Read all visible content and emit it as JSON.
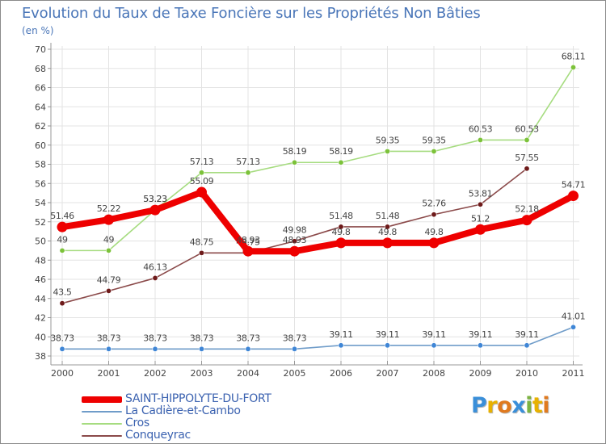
{
  "title": "Evolution du Taux de Taxe Foncière sur les Propriétés Non Bâties",
  "subtitle": "(en %)",
  "colors": {
    "title": "#4a76b8",
    "axis": "#999999",
    "grid": "#e3e3e3",
    "label": "#444444",
    "legend_text": "#3b62b0"
  },
  "logo": {
    "text": "Proxiti",
    "letters": [
      "P",
      "r",
      "o",
      "x",
      "i",
      "t",
      "i"
    ],
    "letter_colors": [
      "#3a8fd9",
      "#e8b100",
      "#e07a1f",
      "#3a8fd9",
      "#7cb342",
      "#e8b100",
      "#e07a1f"
    ]
  },
  "chart_data": {
    "type": "line",
    "title": "Evolution du Taux de Taxe Foncière sur les Propriétés Non Bâties",
    "ylabel": "(en %)",
    "xlabel": "",
    "categories": [
      "2000",
      "2001",
      "2002",
      "2003",
      "2004",
      "2005",
      "2006",
      "2007",
      "2008",
      "2009",
      "2010",
      "2011"
    ],
    "ylim": [
      38,
      70
    ],
    "yticks": [
      38,
      40,
      42,
      44,
      46,
      48,
      50,
      52,
      54,
      56,
      58,
      60,
      62,
      64,
      66,
      68,
      70
    ],
    "grid": true,
    "legend_position": "bottom-left",
    "series": [
      {
        "name": "SAINT-HIPPOLYTE-DU-FORT",
        "color": "#ee0000",
        "marker_fill": "#ee0000",
        "highlight": true,
        "values": [
          51.46,
          52.22,
          53.23,
          55.09,
          48.93,
          48.93,
          49.8,
          49.8,
          49.8,
          51.2,
          52.18,
          54.71
        ],
        "labels": [
          "51.46",
          "52.22",
          "53.23",
          "55.09",
          "48.93",
          "48.93",
          "49.8",
          "49.8",
          "49.8",
          "51.2",
          "52.18",
          "54.71"
        ]
      },
      {
        "name": "La Cadière-et-Cambo",
        "color": "#6f9cc9",
        "marker_fill": "#3f86d6",
        "highlight": false,
        "values": [
          38.73,
          38.73,
          38.73,
          38.73,
          38.73,
          38.73,
          39.11,
          39.11,
          39.11,
          39.11,
          39.11,
          41.01
        ],
        "labels": [
          "38.73",
          "38.73",
          "38.73",
          "38.73",
          "38.73",
          "38.73",
          "39.11",
          "39.11",
          "39.11",
          "39.11",
          "39.11",
          "41.01"
        ]
      },
      {
        "name": "Cros",
        "color": "#a6dc80",
        "marker_fill": "#7cc23a",
        "highlight": false,
        "values": [
          49,
          49,
          53.23,
          57.13,
          57.13,
          58.19,
          58.19,
          59.35,
          59.35,
          60.53,
          60.53,
          68.11
        ],
        "labels": [
          "49",
          "49",
          "53.23",
          "57.13",
          "57.13",
          "58.19",
          "58.19",
          "59.35",
          "59.35",
          "60.53",
          "60.53",
          "68.11"
        ]
      },
      {
        "name": "Conqueyrac",
        "color": "#8b4a4a",
        "marker_fill": "#6e1a1a",
        "highlight": false,
        "values": [
          43.5,
          44.79,
          46.13,
          48.75,
          48.75,
          49.98,
          51.48,
          51.48,
          52.76,
          53.81,
          57.55,
          null
        ],
        "labels": [
          "43.5",
          "44.79",
          "46.13",
          "48.75",
          "48.75",
          "49.98",
          "51.48",
          "51.48",
          "52.76",
          "53.81",
          "57.55",
          null
        ]
      }
    ]
  }
}
